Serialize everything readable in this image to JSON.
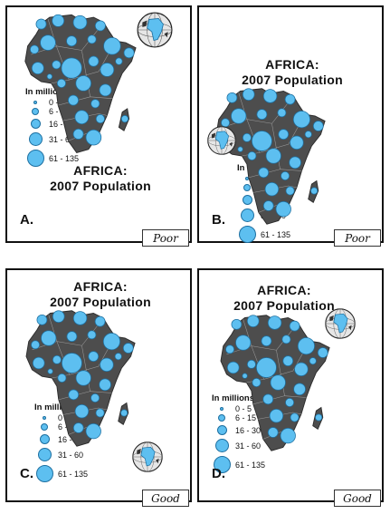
{
  "title_line1": "AFRICA:",
  "title_line2": "2007 Population",
  "legend": {
    "title": "In millions",
    "items": [
      "0 - 5",
      "6 - 15",
      "16 - 30",
      "31 - 60",
      "61 - 135"
    ]
  },
  "panels": [
    {
      "letter": "A.",
      "rating": "Poor"
    },
    {
      "letter": "B.",
      "rating": "Poor"
    },
    {
      "letter": "C.",
      "rating": "Good"
    },
    {
      "letter": "D.",
      "rating": "Good"
    }
  ],
  "colors": {
    "circle": "#5dbff0",
    "land": "#4d4d4d",
    "globe_water": "#d0d0d0"
  }
}
